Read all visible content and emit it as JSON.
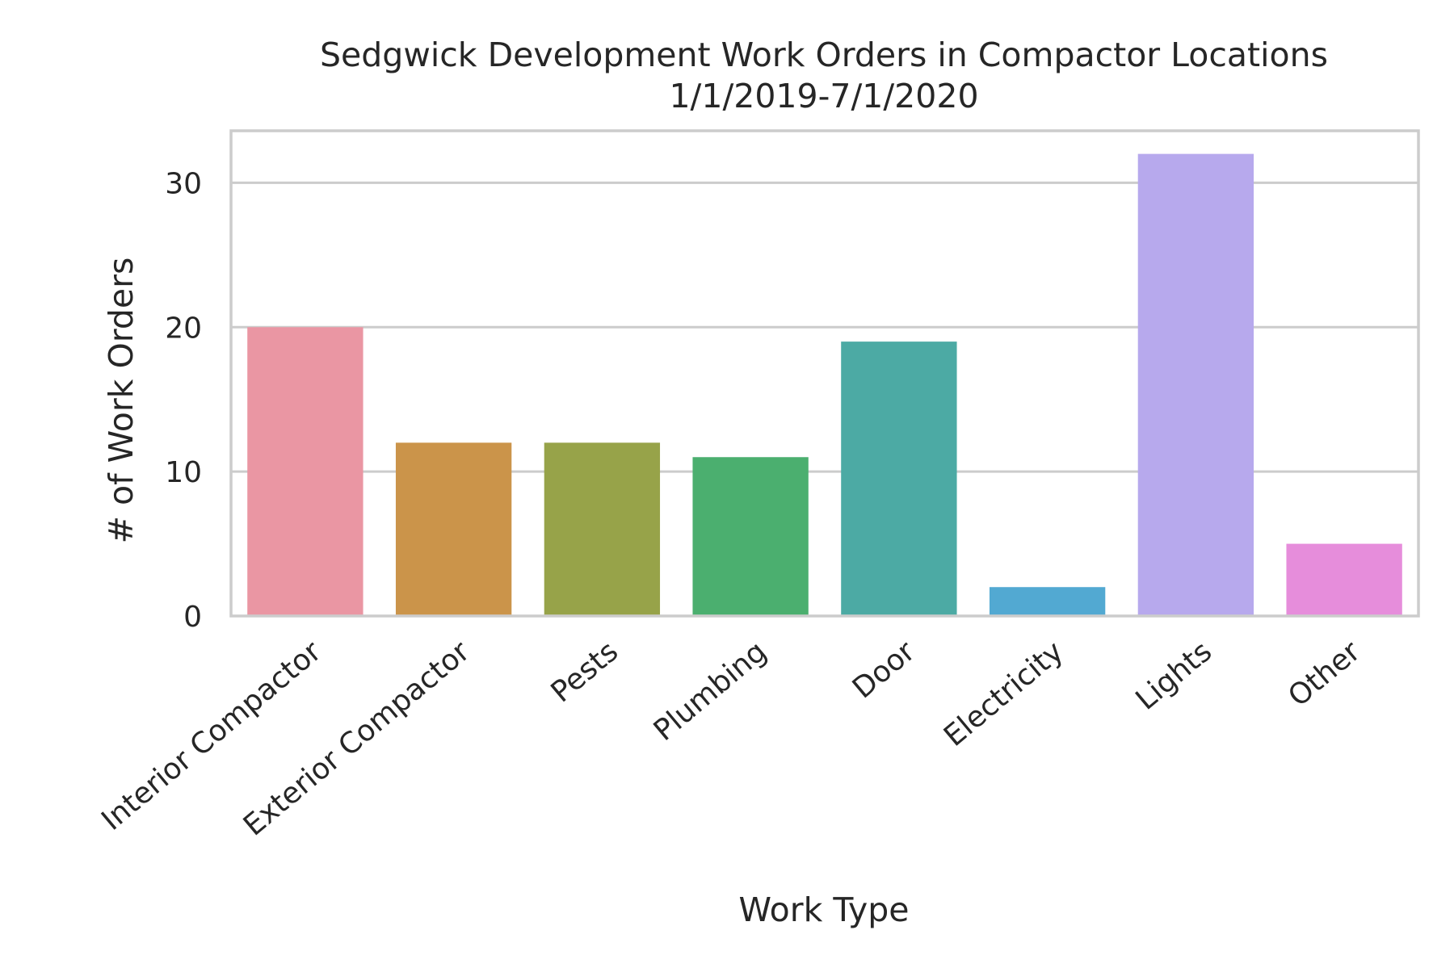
{
  "chart_data": {
    "type": "bar",
    "title": "Sedgwick Development Work Orders in Compactor Locations",
    "subtitle": "1/1/2019-7/1/2020",
    "xlabel": "Work Type",
    "ylabel": "# of Work Orders",
    "categories": [
      "Interior Compactor",
      "Exterior Compactor",
      "Pests",
      "Plumbing",
      "Door",
      "Electricity",
      "Lights",
      "Other"
    ],
    "values": [
      20,
      12,
      12,
      11,
      19,
      2,
      32,
      5
    ],
    "colors": [
      "#ea96a3",
      "#cb944a",
      "#97a349",
      "#4baf6f",
      "#4caaa4",
      "#52a9d2",
      "#b7a9ed",
      "#e68ddb"
    ],
    "ylim": [
      0,
      33.6
    ],
    "yticks": [
      0,
      10,
      20,
      30
    ],
    "ytick_labels": [
      "0",
      "10",
      "20",
      "30"
    ],
    "grid": true,
    "grid_axis": "y"
  }
}
